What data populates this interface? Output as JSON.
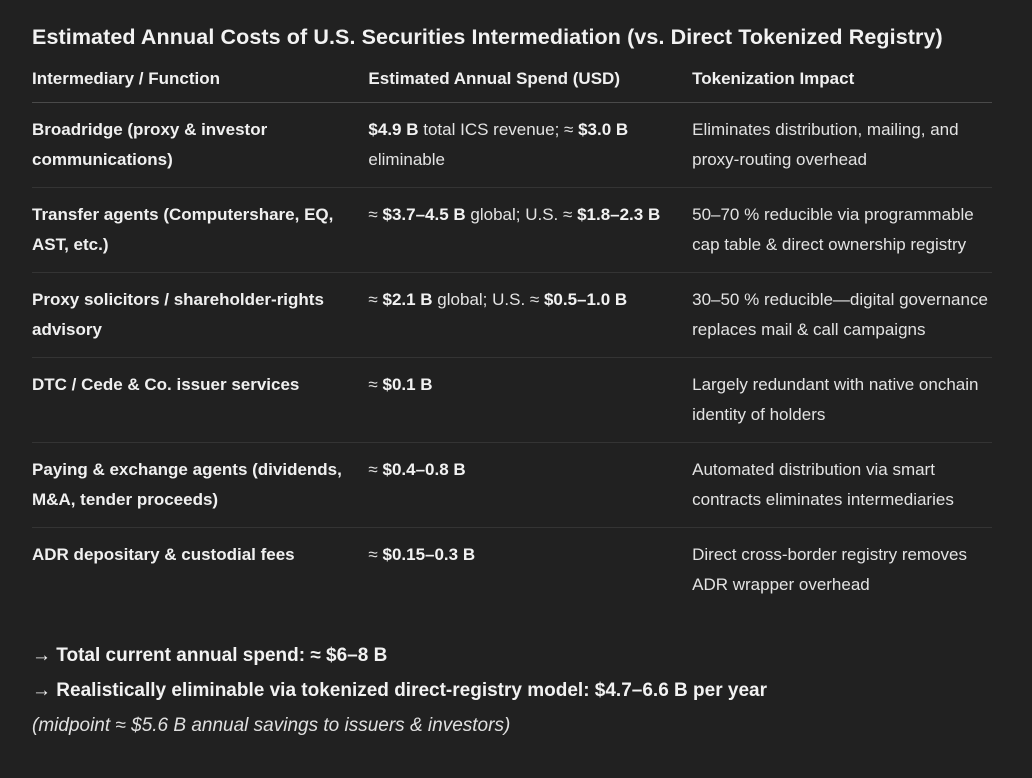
{
  "title": "Estimated Annual Costs of U.S. Securities Intermediation (vs. Direct Tokenized Registry)",
  "table": {
    "headers": [
      "Intermediary / Function",
      "Estimated Annual Spend (USD)",
      "Tokenization Impact"
    ],
    "rows": [
      {
        "function": "Broadridge (proxy & investor communications)",
        "spend": [
          {
            "text": "$4.9 B",
            "bold": true
          },
          {
            "text": " total ICS revenue; ≈ ",
            "bold": false
          },
          {
            "text": "$3.0 B",
            "bold": true
          },
          {
            "text": " eliminable",
            "bold": false
          }
        ],
        "impact": "Eliminates distribution, mailing, and proxy-routing overhead"
      },
      {
        "function": "Transfer agents (Computershare, EQ, AST, etc.)",
        "spend": [
          {
            "text": "≈ ",
            "bold": false
          },
          {
            "text": "$3.7–4.5 B",
            "bold": true
          },
          {
            "text": " global; U.S. ≈ ",
            "bold": false
          },
          {
            "text": "$1.8–2.3 B",
            "bold": true
          }
        ],
        "impact": "50–70 % reducible via programmable cap table & direct ownership registry"
      },
      {
        "function": "Proxy solicitors / shareholder-rights advisory",
        "spend": [
          {
            "text": "≈ ",
            "bold": false
          },
          {
            "text": "$2.1 B",
            "bold": true
          },
          {
            "text": " global; U.S. ≈ ",
            "bold": false
          },
          {
            "text": "$0.5–1.0 B",
            "bold": true
          }
        ],
        "impact": "30–50 % reducible—digital governance replaces mail & call campaigns"
      },
      {
        "function": "DTC / Cede & Co. issuer services",
        "spend": [
          {
            "text": "≈ ",
            "bold": false
          },
          {
            "text": "$0.1 B",
            "bold": true
          }
        ],
        "impact": "Largely redundant with native onchain identity of holders"
      },
      {
        "function": "Paying & exchange agents (dividends, M&A, tender proceeds)",
        "spend": [
          {
            "text": "≈ ",
            "bold": false
          },
          {
            "text": "$0.4–0.8 B",
            "bold": true
          }
        ],
        "impact": "Automated distribution via smart contracts eliminates intermediaries"
      },
      {
        "function": "ADR depositary & custodial fees",
        "spend": [
          {
            "text": "≈ ",
            "bold": false
          },
          {
            "text": "$0.15–0.3 B",
            "bold": true
          }
        ],
        "impact": "Direct cross-border registry removes ADR wrapper overhead"
      }
    ]
  },
  "summary": {
    "total_spend": "→ Total current annual spend: ≈ $6–8 B",
    "eliminable": "→ Realistically eliminable via tokenized direct-registry model: $4.7–6.6 B per year",
    "midpoint_note": "(midpoint ≈ $5.6 B annual savings to issuers & investors)"
  }
}
